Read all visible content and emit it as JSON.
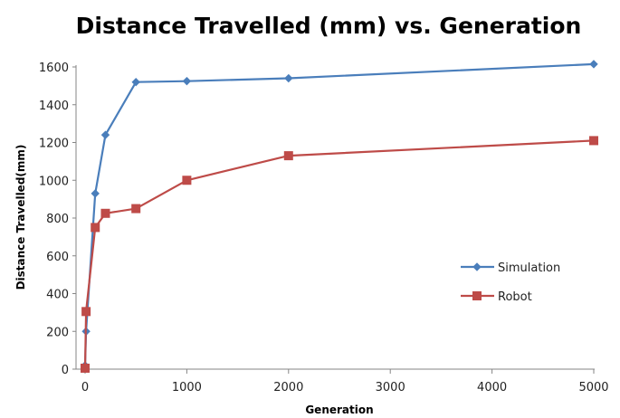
{
  "chart_data": {
    "type": "line",
    "title": "Distance Travelled (mm) vs. Generation",
    "xlabel": "Generation",
    "ylabel": "Distance Travelled(mm)",
    "xlim": [
      0,
      5000
    ],
    "ylim": [
      0,
      1600
    ],
    "xticks": [
      0,
      1000,
      2000,
      3000,
      4000,
      5000
    ],
    "yticks": [
      0,
      200,
      400,
      600,
      800,
      1000,
      1200,
      1400,
      1600
    ],
    "grid": false,
    "legend_position": "right",
    "series": [
      {
        "name": "Simulation",
        "color": "#4a7ebb",
        "marker": "diamond",
        "x": [
          0,
          10,
          100,
          200,
          500,
          1000,
          2000,
          5000
        ],
        "y": [
          20,
          200,
          930,
          1240,
          1520,
          1525,
          1540,
          1615
        ]
      },
      {
        "name": "Robot",
        "color": "#be4b48",
        "marker": "square",
        "x": [
          0,
          10,
          100,
          200,
          500,
          1000,
          2000,
          5000
        ],
        "y": [
          5,
          305,
          750,
          825,
          850,
          1000,
          1130,
          1210
        ]
      }
    ]
  }
}
